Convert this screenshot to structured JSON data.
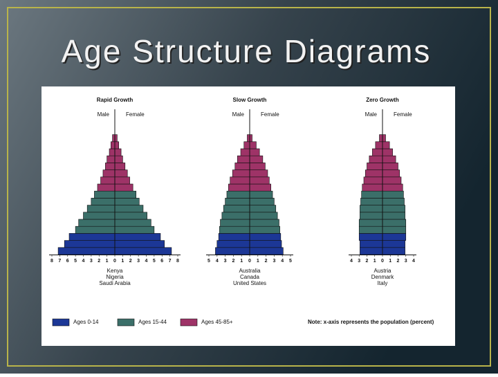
{
  "title": "Age Structure Diagrams",
  "legend": [
    {
      "name": "Ages 0-14",
      "color": "#1c3796"
    },
    {
      "name": "Ages 15-44",
      "color": "#3b6f69"
    },
    {
      "name": "Ages 45-85+",
      "color": "#9e3367"
    }
  ],
  "note": "Note: x-axis represents the population (percent)",
  "chart_data": [
    {
      "type": "pyramid",
      "title": "Rapid Growth",
      "male_label": "Male",
      "female_label": "Female",
      "countries": [
        "Kenya",
        "Nigeria",
        "Saudi Arabia"
      ],
      "xlim": [
        -8,
        8
      ],
      "xticks": [
        {
          "value": -8,
          "label": "8"
        },
        {
          "value": -7,
          "label": "7"
        },
        {
          "value": -6,
          "label": "6"
        },
        {
          "value": -5,
          "label": "5"
        },
        {
          "value": -4,
          "label": "4"
        },
        {
          "value": -3,
          "label": "3"
        },
        {
          "value": -2,
          "label": "2"
        },
        {
          "value": -1,
          "label": "1"
        },
        0,
        1,
        2,
        3,
        4,
        5,
        6,
        7,
        8
      ],
      "series": [
        {
          "male": [
            7.2,
            6.4,
            5.8
          ],
          "female": [
            7.2,
            6.3,
            5.8
          ]
        },
        {
          "male": [
            5.0,
            4.6,
            4.0,
            3.5,
            3.0,
            2.6
          ],
          "female": [
            5.0,
            4.6,
            4.1,
            3.6,
            3.1,
            2.7
          ]
        },
        {
          "male": [
            2.2,
            1.8,
            1.5,
            1.2,
            1.0,
            0.7,
            0.5,
            0.3
          ],
          "female": [
            2.3,
            1.9,
            1.6,
            1.3,
            1.0,
            0.8,
            0.5,
            0.3
          ]
        }
      ]
    },
    {
      "type": "pyramid",
      "title": "Slow Growth",
      "male_label": "Male",
      "female_label": "Female",
      "countries": [
        "Australia",
        "Canada",
        "United States"
      ],
      "xlim": [
        -5,
        5
      ],
      "xticks": [
        {
          "value": -5,
          "label": "5"
        },
        {
          "value": -4,
          "label": "4"
        },
        {
          "value": -3,
          "label": "3"
        },
        {
          "value": -2,
          "label": "2"
        },
        {
          "value": -1,
          "label": "1"
        },
        0,
        1,
        2,
        3,
        4,
        5
      ],
      "series": [
        {
          "male": [
            4.2,
            4.0,
            3.8
          ],
          "female": [
            4.1,
            3.9,
            3.8
          ]
        },
        {
          "male": [
            3.7,
            3.6,
            3.4,
            3.2,
            3.0,
            2.8
          ],
          "female": [
            3.7,
            3.6,
            3.4,
            3.2,
            3.0,
            2.8
          ]
        },
        {
          "male": [
            2.6,
            2.4,
            2.1,
            1.8,
            1.5,
            1.1,
            0.7,
            0.3
          ],
          "female": [
            2.6,
            2.4,
            2.2,
            1.9,
            1.6,
            1.2,
            0.8,
            0.3
          ]
        }
      ]
    },
    {
      "type": "pyramid",
      "title": "Zero Growth",
      "male_label": "Male",
      "female_label": "Female",
      "countries": [
        "Austria",
        "Denmark",
        "Italy"
      ],
      "xlim": [
        -4,
        4
      ],
      "xticks": [
        {
          "value": -4,
          "label": "4"
        },
        {
          "value": -3,
          "label": "3"
        },
        {
          "value": -2,
          "label": "2"
        },
        {
          "value": -1,
          "label": "1"
        },
        0,
        1,
        2,
        3,
        4
      ],
      "series": [
        {
          "male": [
            2.9,
            2.9,
            3.0
          ],
          "female": [
            2.9,
            2.9,
            3.0
          ]
        },
        {
          "male": [
            3.0,
            3.0,
            2.9,
            2.9,
            2.8,
            2.7
          ],
          "female": [
            3.0,
            3.0,
            2.9,
            2.9,
            2.8,
            2.7
          ]
        },
        {
          "male": [
            2.6,
            2.4,
            2.2,
            2.0,
            1.7,
            1.3,
            0.9,
            0.4
          ],
          "female": [
            2.6,
            2.4,
            2.2,
            2.0,
            1.7,
            1.3,
            0.9,
            0.4
          ]
        }
      ]
    }
  ]
}
